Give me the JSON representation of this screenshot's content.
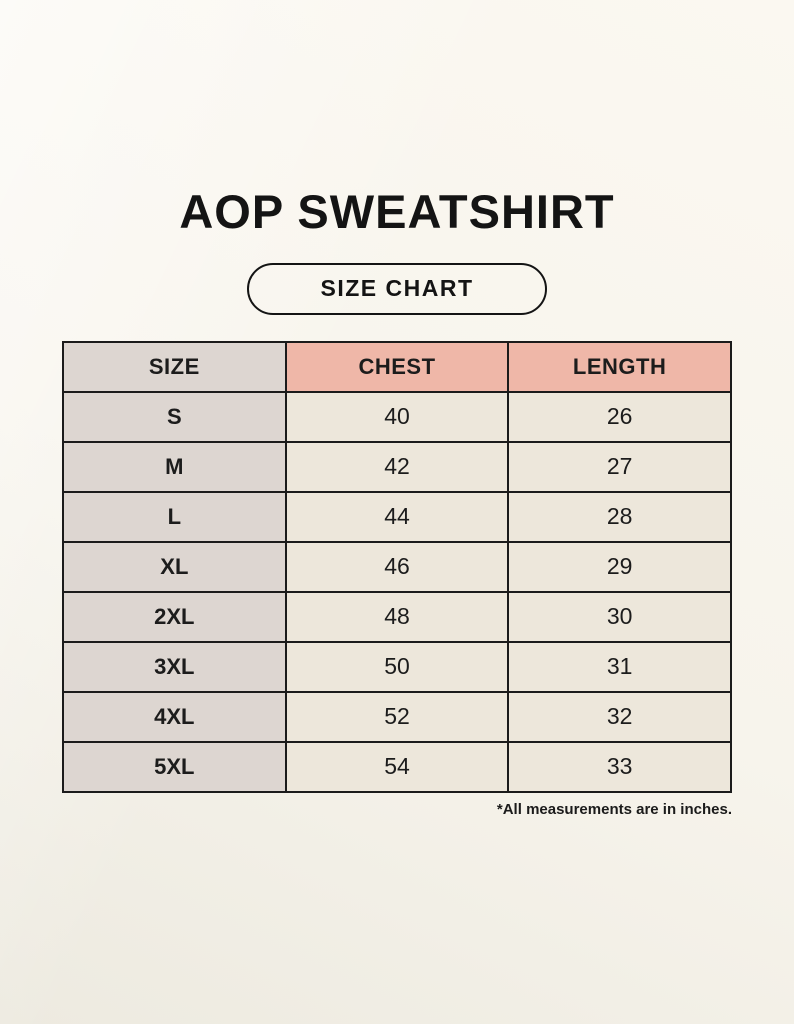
{
  "page": {
    "title": "AOP SWEATSHIRT",
    "badge_label": "SIZE CHART",
    "footnote": "*All measurements are in inches."
  },
  "chart_data": {
    "type": "table",
    "title": "AOP SWEATSHIRT",
    "subtitle": "SIZE CHART",
    "columns": [
      "SIZE",
      "CHEST",
      "LENGTH"
    ],
    "rows": [
      [
        "S",
        40,
        26
      ],
      [
        "M",
        42,
        27
      ],
      [
        "L",
        44,
        28
      ],
      [
        "XL",
        46,
        29
      ],
      [
        "2XL",
        48,
        30
      ],
      [
        "3XL",
        50,
        31
      ],
      [
        "4XL",
        52,
        32
      ],
      [
        "5XL",
        54,
        33
      ]
    ],
    "units": "inches"
  },
  "colors": {
    "background": "#f7f4ec",
    "accent_header": "#efb7a8",
    "size_column": "#ddd6d1",
    "cell_background": "#ede7db",
    "border": "#1b1b1b",
    "text": "#141414"
  }
}
